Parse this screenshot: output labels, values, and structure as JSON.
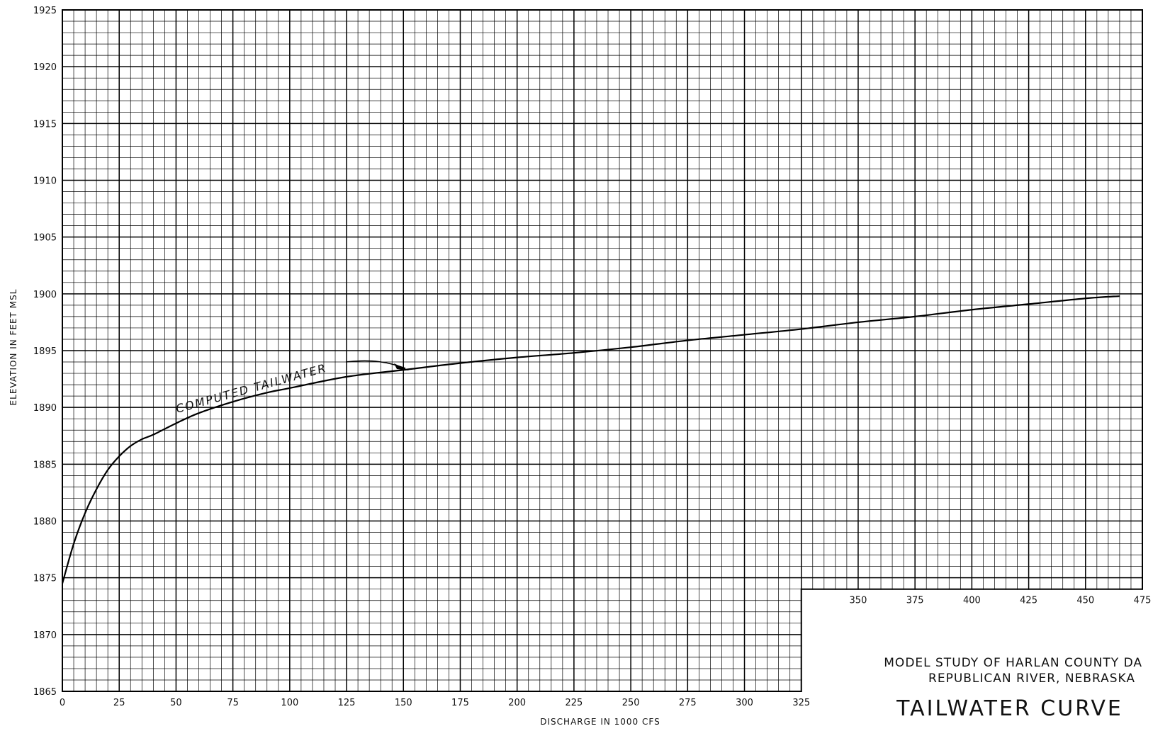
{
  "chart_data": {
    "type": "line",
    "title": "TAILWATER CURVE",
    "subtitle_lines": [
      "MODEL STUDY OF HARLAN COUNTY DA",
      "REPUBLICAN RIVER,  NEBRASKA"
    ],
    "xlabel": "DISCHARGE  IN  1000 CFS",
    "ylabel": "ELEVATION  IN  FEET  MSL",
    "xlim": [
      0,
      475
    ],
    "ylim": [
      1865,
      1925
    ],
    "x_ticks": [
      0,
      25,
      50,
      75,
      100,
      125,
      150,
      175,
      200,
      225,
      250,
      275,
      300,
      325,
      350,
      375,
      400,
      425,
      450,
      475
    ],
    "y_ticks": [
      1865,
      1870,
      1875,
      1880,
      1885,
      1890,
      1895,
      1900,
      1905,
      1910,
      1915,
      1920,
      1925
    ],
    "grid": true,
    "annotation": "COMPUTED  TAILWATER",
    "series": [
      {
        "x": [
          0,
          5,
          10,
          15,
          20,
          25,
          30,
          35,
          40,
          50,
          60,
          75,
          90,
          100,
          125,
          150,
          175,
          200,
          225,
          250,
          275,
          300,
          325,
          350,
          375,
          400,
          425,
          450,
          465
        ],
        "y": [
          1874.5,
          1878.0,
          1880.7,
          1882.8,
          1884.5,
          1885.7,
          1886.6,
          1887.2,
          1887.6,
          1888.6,
          1889.5,
          1890.5,
          1891.3,
          1891.7,
          1892.7,
          1893.3,
          1893.9,
          1894.4,
          1894.8,
          1895.3,
          1895.9,
          1896.4,
          1896.9,
          1897.5,
          1898.0,
          1898.6,
          1899.1,
          1899.6,
          1899.8
        ]
      }
    ]
  }
}
